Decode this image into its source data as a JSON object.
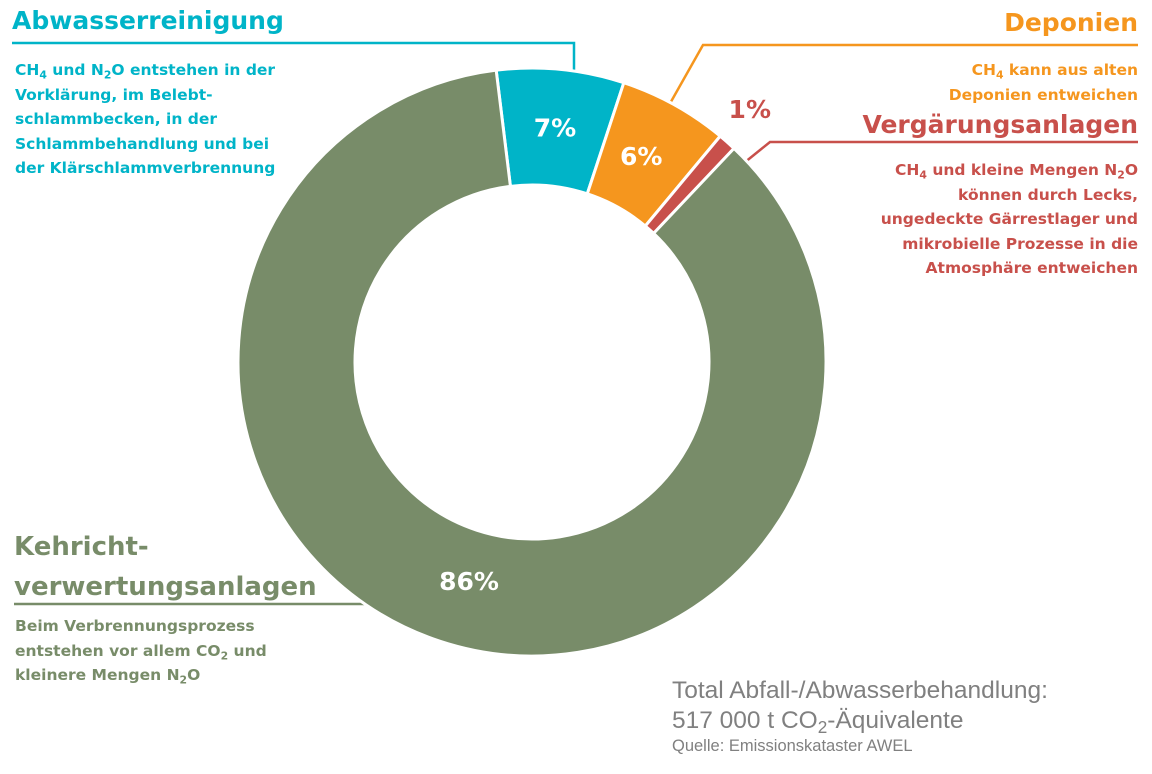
{
  "chart_data": {
    "type": "pie",
    "donut": true,
    "categories": [
      "Abwasserreinigung",
      "Deponien",
      "Vergärungsanlagen",
      "Kehrichtverwertungsanlagen"
    ],
    "values": [
      7,
      6,
      1,
      86
    ],
    "value_labels": [
      "7%",
      "6%",
      "1%",
      "86%"
    ],
    "colors": [
      "#00b4c8",
      "#f5961e",
      "#c8504b",
      "#788c69"
    ],
    "annotations": [
      {
        "title": "Abwasserreinigung",
        "text": [
          "CH4 und N2O entstehen in der",
          "Vorklärung, im Belebt-",
          "schlammbecken, in der",
          "Schlammbehandlung und bei",
          "der Klärschlammverbrennung"
        ]
      },
      {
        "title": "Deponien",
        "text": [
          "CH4 kann aus alten",
          "Deponien entweichen"
        ]
      },
      {
        "title": "Vergärungsanlagen",
        "text": [
          "CH4 und kleine Mengen N2O",
          "können durch Lecks,",
          "ungedeckte Gärrestlager und",
          "mikrobielle Prozesse in die",
          "Atmosphäre entweichen"
        ]
      },
      {
        "title": "Kehricht-verwertungsanlagen",
        "text": [
          "Beim Verbrennungsprozess",
          "entstehen vor allem CO2 und",
          "kleinere Mengen N2O"
        ]
      }
    ],
    "total_line1": "Total Abfall-/Abwasserbehandlung:",
    "total_line2": "517 000 t CO2-Äquivalente",
    "source": "Quelle: Emissionskataster AWEL"
  }
}
